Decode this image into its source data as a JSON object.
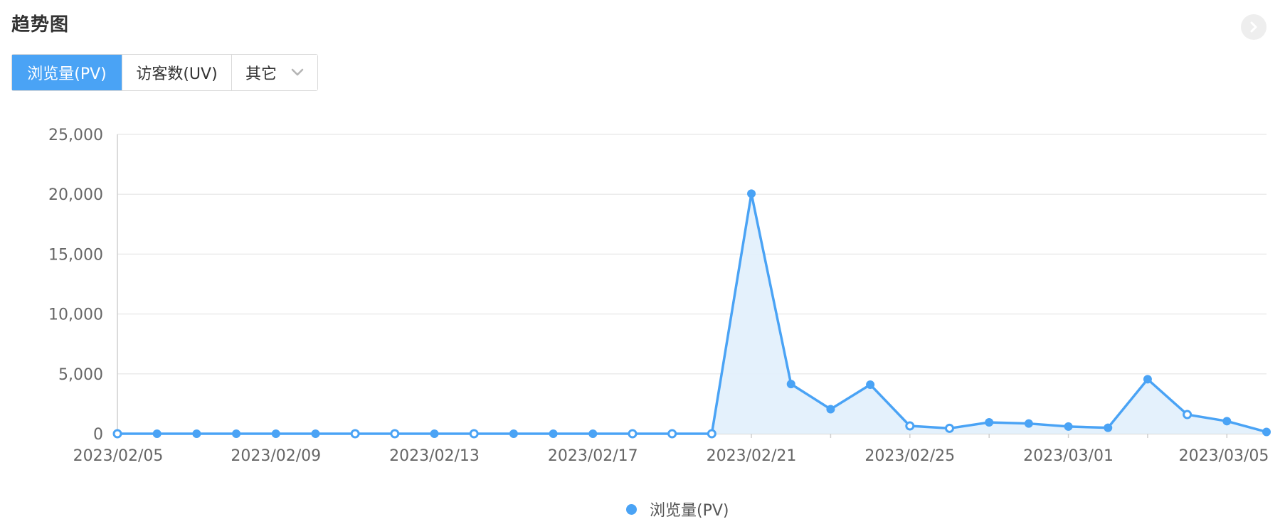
{
  "header": {
    "title": "趋势图"
  },
  "tabs": [
    {
      "label": "浏览量(PV)",
      "active": true
    },
    {
      "label": "访客数(UV)",
      "active": false
    },
    {
      "label": "其它",
      "active": false
    }
  ],
  "colors": {
    "accent": "#4aa3f5",
    "area": "#e3f0fc",
    "grid": "#ebebeb",
    "axis_text": "#666666"
  },
  "chart_data": {
    "type": "area",
    "title": "",
    "xlabel": "",
    "ylabel": "",
    "ylim": [
      0,
      25000
    ],
    "yticks": [
      "0",
      "5,000",
      "10,000",
      "15,000",
      "20,000",
      "25,000"
    ],
    "x_tick_labels": [
      "2023/02/05",
      "2023/02/09",
      "2023/02/13",
      "2023/02/17",
      "2023/02/21",
      "2023/02/25",
      "2023/03/01",
      "2023/03/05"
    ],
    "grid": true,
    "legend_position": "bottom-center",
    "x": [
      "2023/02/05",
      "2023/02/06",
      "2023/02/07",
      "2023/02/08",
      "2023/02/09",
      "2023/02/10",
      "2023/02/11",
      "2023/02/12",
      "2023/02/13",
      "2023/02/14",
      "2023/02/15",
      "2023/02/16",
      "2023/02/17",
      "2023/02/18",
      "2023/02/19",
      "2023/02/20",
      "2023/02/21",
      "2023/02/22",
      "2023/02/23",
      "2023/02/24",
      "2023/02/25",
      "2023/02/26",
      "2023/02/27",
      "2023/02/28",
      "2023/03/01",
      "2023/03/02",
      "2023/03/03",
      "2023/03/04",
      "2023/03/05",
      "2023/03/06"
    ],
    "series": [
      {
        "name": "浏览量(PV)",
        "values": [
          0,
          0,
          0,
          0,
          0,
          0,
          0,
          0,
          0,
          0,
          0,
          0,
          0,
          0,
          0,
          0,
          20050,
          4150,
          2050,
          4100,
          650,
          450,
          950,
          850,
          600,
          500,
          4550,
          1600,
          1050,
          150
        ],
        "hollow": [
          true,
          false,
          false,
          false,
          false,
          false,
          true,
          true,
          false,
          true,
          false,
          false,
          false,
          true,
          true,
          true,
          false,
          false,
          false,
          false,
          true,
          true,
          false,
          false,
          false,
          false,
          false,
          true,
          false,
          false
        ]
      }
    ]
  }
}
